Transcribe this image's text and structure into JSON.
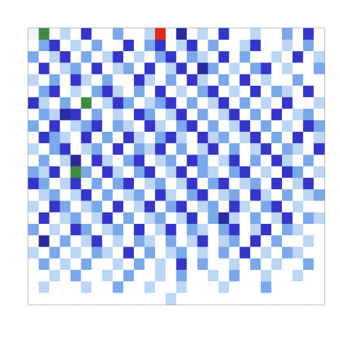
{
  "chart_data": {
    "type": "heatmap",
    "zlim": [
      0,
      9
    ],
    "tick_labels": false,
    "grid": false,
    "z": [
      [
        1,
        6,
        0,
        2,
        0,
        4,
        0,
        0,
        3,
        0,
        0,
        2,
        9,
        0,
        5,
        0,
        2,
        0,
        4,
        0,
        0,
        2,
        0,
        0,
        3,
        0,
        4,
        0
      ],
      [
        0,
        3,
        4,
        0,
        2,
        0,
        3,
        0,
        0,
        4,
        0,
        3,
        4,
        0,
        2,
        4,
        0,
        3,
        0,
        0,
        2,
        4,
        0,
        0,
        2,
        0,
        3,
        0
      ],
      [
        3,
        0,
        2,
        4,
        0,
        3,
        0,
        2,
        4,
        0,
        2,
        0,
        3,
        4,
        0,
        3,
        2,
        0,
        4,
        0,
        3,
        0,
        0,
        2,
        0,
        4,
        0,
        2
      ],
      [
        0,
        4,
        0,
        2,
        3,
        0,
        4,
        0,
        2,
        3,
        0,
        4,
        0,
        2,
        4,
        0,
        5,
        3,
        0,
        2,
        0,
        3,
        4,
        0,
        2,
        0,
        0,
        3
      ],
      [
        2,
        0,
        3,
        0,
        4,
        2,
        0,
        3,
        0,
        0,
        4,
        2,
        0,
        3,
        0,
        4,
        2,
        0,
        3,
        0,
        4,
        0,
        2,
        0,
        0,
        3,
        0,
        0
      ],
      [
        0,
        3,
        4,
        0,
        2,
        0,
        3,
        4,
        2,
        0,
        3,
        0,
        4,
        0,
        2,
        0,
        3,
        4,
        0,
        2,
        0,
        4,
        0,
        3,
        2,
        0,
        4,
        0
      ],
      [
        4,
        2,
        0,
        3,
        0,
        6,
        0,
        2,
        4,
        3,
        0,
        2,
        3,
        4,
        0,
        3,
        0,
        2,
        4,
        0,
        3,
        0,
        2,
        0,
        4,
        0,
        0,
        2
      ],
      [
        0,
        3,
        2,
        5,
        4,
        0,
        3,
        0,
        2,
        0,
        4,
        3,
        0,
        2,
        4,
        0,
        3,
        0,
        2,
        4,
        0,
        3,
        0,
        4,
        0,
        2,
        3,
        0
      ],
      [
        3,
        0,
        4,
        0,
        2,
        3,
        4,
        0,
        3,
        2,
        0,
        4,
        2,
        0,
        3,
        4,
        0,
        3,
        0,
        2,
        4,
        0,
        3,
        0,
        2,
        0,
        4,
        3
      ],
      [
        0,
        4,
        3,
        2,
        0,
        4,
        0,
        3,
        0,
        4,
        2,
        0,
        3,
        4,
        2,
        0,
        4,
        2,
        3,
        0,
        2,
        4,
        0,
        3,
        0,
        4,
        0,
        2
      ],
      [
        2,
        0,
        3,
        4,
        0,
        2,
        3,
        0,
        4,
        0,
        3,
        2,
        4,
        0,
        3,
        0,
        2,
        4,
        0,
        3,
        0,
        2,
        4,
        0,
        3,
        2,
        0,
        4
      ],
      [
        0,
        3,
        0,
        2,
        5,
        0,
        4,
        2,
        0,
        3,
        4,
        0,
        2,
        3,
        0,
        4,
        3,
        0,
        2,
        4,
        0,
        3,
        0,
        4,
        2,
        0,
        3,
        0
      ],
      [
        3,
        2,
        4,
        0,
        6,
        3,
        0,
        4,
        2,
        0,
        3,
        4,
        0,
        2,
        4,
        0,
        3,
        2,
        0,
        3,
        4,
        0,
        2,
        0,
        4,
        3,
        0,
        2
      ],
      [
        4,
        3,
        0,
        2,
        4,
        0,
        3,
        0,
        3,
        4,
        0,
        2,
        3,
        0,
        2,
        4,
        0,
        3,
        4,
        0,
        2,
        3,
        0,
        4,
        0,
        2,
        4,
        0
      ],
      [
        0,
        2,
        3,
        0,
        2,
        4,
        0,
        3,
        0,
        2,
        3,
        0,
        4,
        2,
        0,
        3,
        4,
        0,
        2,
        3,
        0,
        4,
        2,
        0,
        3,
        0,
        2,
        3
      ],
      [
        2,
        0,
        4,
        3,
        0,
        2,
        3,
        0,
        4,
        0,
        2,
        4,
        0,
        3,
        4,
        0,
        2,
        3,
        0,
        4,
        2,
        0,
        3,
        4,
        0,
        2,
        0,
        0
      ],
      [
        0,
        4,
        0,
        2,
        3,
        0,
        2,
        4,
        0,
        3,
        0,
        2,
        3,
        0,
        2,
        4,
        0,
        3,
        5,
        2,
        0,
        3,
        0,
        2,
        4,
        0,
        3,
        2
      ],
      [
        3,
        0,
        2,
        0,
        4,
        3,
        0,
        2,
        3,
        0,
        4,
        0,
        2,
        4,
        0,
        3,
        2,
        0,
        3,
        4,
        0,
        2,
        4,
        0,
        3,
        2,
        0,
        0
      ],
      [
        0,
        5,
        0,
        3,
        0,
        2,
        4,
        0,
        2,
        0,
        3,
        2,
        0,
        3,
        0,
        2,
        4,
        0,
        2,
        3,
        0,
        4,
        0,
        3,
        0,
        0,
        2,
        0
      ],
      [
        2,
        0,
        3,
        0,
        2,
        0,
        3,
        2,
        0,
        4,
        0,
        3,
        0,
        2,
        3,
        0,
        2,
        0,
        3,
        0,
        4,
        0,
        2,
        0,
        3,
        2,
        0,
        0
      ],
      [
        0,
        3,
        0,
        2,
        0,
        3,
        0,
        0,
        2,
        0,
        3,
        0,
        2,
        0,
        4,
        0,
        3,
        0,
        0,
        2,
        0,
        3,
        0,
        2,
        0,
        0,
        3,
        0
      ],
      [
        0,
        0,
        2,
        0,
        3,
        0,
        0,
        2,
        0,
        3,
        0,
        0,
        2,
        0,
        3,
        0,
        0,
        2,
        0,
        3,
        0,
        0,
        2,
        0,
        0,
        2,
        0,
        0
      ],
      [
        0,
        2,
        0,
        0,
        0,
        2,
        0,
        0,
        3,
        0,
        0,
        2,
        0,
        0,
        2,
        0,
        0,
        0,
        2,
        0,
        0,
        0,
        3,
        0,
        0,
        0,
        0,
        0
      ],
      [
        0,
        0,
        0,
        0,
        0,
        0,
        0,
        0,
        0,
        0,
        0,
        0,
        0,
        2,
        0,
        0,
        0,
        0,
        0,
        0,
        0,
        0,
        0,
        0,
        0,
        0,
        0,
        0
      ]
    ]
  }
}
